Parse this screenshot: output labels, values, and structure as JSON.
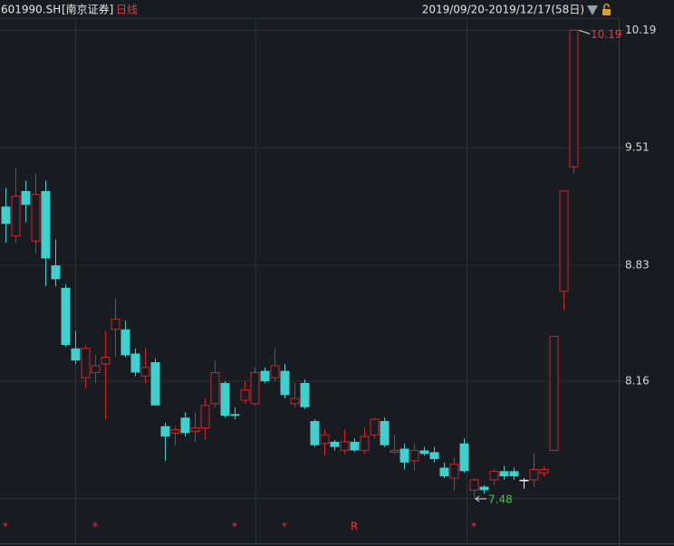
{
  "chart_data": {
    "type": "candlestick",
    "symbol": "601990.SH",
    "name": "[南京证券]",
    "period": "日线",
    "range": "2019/09/20-2019/12/17(58日)",
    "open": [
      9.17,
      9.0,
      9.26,
      8.97,
      9.26,
      8.83,
      8.7,
      8.35,
      8.18,
      8.21,
      8.26,
      8.46,
      8.46,
      8.32,
      8.19,
      8.27,
      7.9,
      7.86,
      7.95,
      7.87,
      7.89,
      8.03,
      8.15,
      7.97,
      8.05,
      8.03,
      8.22,
      8.18,
      8.22,
      8.03,
      8.15,
      7.93,
      7.8,
      7.81,
      7.76,
      7.81,
      7.76,
      7.85,
      7.93,
      7.75,
      7.77,
      7.7,
      7.76,
      7.75,
      7.66,
      7.6,
      7.8,
      7.53,
      7.55,
      7.59,
      7.64,
      7.64,
      7.59,
      7.59,
      7.63,
      7.76,
      8.68,
      9.4
    ],
    "high": [
      9.28,
      9.39,
      9.32,
      9.36,
      9.32,
      8.98,
      8.72,
      8.45,
      8.37,
      8.31,
      8.45,
      8.64,
      8.51,
      8.35,
      8.35,
      8.29,
      7.92,
      7.9,
      7.98,
      7.98,
      8.06,
      8.28,
      8.16,
      8.01,
      8.16,
      8.24,
      8.24,
      8.35,
      8.26,
      8.15,
      8.17,
      7.94,
      7.88,
      7.82,
      7.88,
      7.83,
      7.89,
      7.95,
      7.95,
      7.85,
      7.8,
      7.8,
      7.78,
      7.78,
      7.69,
      7.72,
      7.83,
      7.6,
      7.56,
      7.65,
      7.67,
      7.66,
      7.6,
      7.74,
      7.67,
      8.42,
      9.26,
      10.19
    ],
    "low": [
      8.96,
      8.96,
      9.08,
      8.9,
      8.71,
      8.71,
      8.36,
      8.26,
      8.12,
      8.15,
      7.94,
      8.3,
      8.3,
      8.19,
      8.15,
      8.02,
      7.7,
      7.79,
      7.84,
      7.81,
      7.82,
      8.01,
      7.95,
      7.94,
      8.03,
      8.02,
      8.15,
      8.16,
      8.06,
      8.01,
      8.0,
      7.78,
      7.73,
      7.76,
      7.74,
      7.75,
      7.74,
      7.83,
      7.78,
      7.74,
      7.65,
      7.64,
      7.73,
      7.69,
      7.6,
      7.53,
      7.63,
      7.48,
      7.51,
      7.56,
      7.59,
      7.59,
      7.54,
      7.55,
      7.61,
      7.76,
      8.57,
      9.36
    ],
    "close": [
      9.07,
      9.23,
      9.18,
      9.24,
      8.87,
      8.75,
      8.37,
      8.28,
      8.35,
      8.25,
      8.3,
      8.52,
      8.31,
      8.21,
      8.24,
      8.02,
      7.84,
      7.88,
      7.86,
      7.89,
      8.02,
      8.21,
      7.96,
      7.96,
      8.11,
      8.21,
      8.16,
      8.25,
      8.08,
      8.06,
      8.01,
      7.79,
      7.85,
      7.78,
      7.81,
      7.76,
      7.84,
      7.94,
      7.79,
      7.76,
      7.69,
      7.76,
      7.74,
      7.71,
      7.61,
      7.68,
      7.64,
      7.59,
      7.53,
      7.64,
      7.61,
      7.61,
      7.59,
      7.65,
      7.65,
      8.42,
      9.26,
      10.19
    ],
    "up_color": "#d0262c",
    "down_color": "#3fcfcf",
    "flat_color": "#ffffff",
    "ylim": [
      7.38,
      10.26
    ],
    "yticks": [
      8.16,
      8.83,
      9.51,
      10.19
    ],
    "grid": true,
    "markers": [
      {
        "index": 0,
        "label": "*"
      },
      {
        "index": 9,
        "label": "*"
      },
      {
        "index": 23,
        "label": "*"
      },
      {
        "index": 28,
        "label": "*"
      },
      {
        "index": 35,
        "label": "R"
      },
      {
        "index": 47,
        "label": "*"
      }
    ]
  }
}
